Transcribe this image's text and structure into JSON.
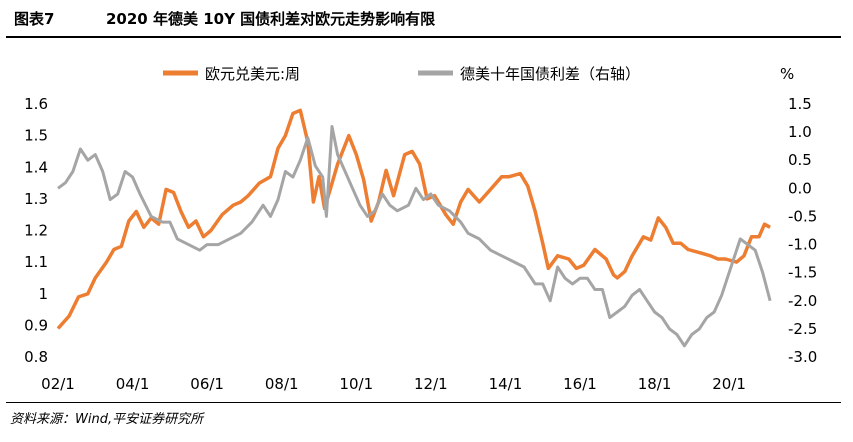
{
  "header": {
    "figure_no": "图表7",
    "title": "2020 年德美 10Y 国债利差对欧元走势影响有限"
  },
  "source": "资料来源：Wind,平安证券研究所",
  "chart_data": {
    "type": "line",
    "legend": {
      "placement": "top",
      "entries": [
        "欧元兑美元:周",
        "德美十年国债利差（右轴）"
      ]
    },
    "series": [
      {
        "name": "欧元兑美元:周",
        "axis": "left",
        "color": "#ED7D31",
        "points": [
          [
            2002.0,
            0.89
          ],
          [
            2002.3,
            0.93
          ],
          [
            2002.55,
            0.99
          ],
          [
            2002.8,
            1.0
          ],
          [
            2003.0,
            1.05
          ],
          [
            2003.3,
            1.1
          ],
          [
            2003.5,
            1.14
          ],
          [
            2003.7,
            1.15
          ],
          [
            2003.9,
            1.23
          ],
          [
            2004.1,
            1.26
          ],
          [
            2004.3,
            1.21
          ],
          [
            2004.5,
            1.24
          ],
          [
            2004.7,
            1.22
          ],
          [
            2004.9,
            1.33
          ],
          [
            2005.1,
            1.32
          ],
          [
            2005.3,
            1.26
          ],
          [
            2005.5,
            1.21
          ],
          [
            2005.7,
            1.23
          ],
          [
            2005.9,
            1.18
          ],
          [
            2006.1,
            1.2
          ],
          [
            2006.4,
            1.25
          ],
          [
            2006.7,
            1.28
          ],
          [
            2006.9,
            1.29
          ],
          [
            2007.1,
            1.31
          ],
          [
            2007.4,
            1.35
          ],
          [
            2007.7,
            1.37
          ],
          [
            2007.9,
            1.46
          ],
          [
            2008.1,
            1.5
          ],
          [
            2008.3,
            1.57
          ],
          [
            2008.5,
            1.58
          ],
          [
            2008.7,
            1.48
          ],
          [
            2008.85,
            1.29
          ],
          [
            2009.0,
            1.37
          ],
          [
            2009.15,
            1.27
          ],
          [
            2009.3,
            1.33
          ],
          [
            2009.5,
            1.41
          ],
          [
            2009.8,
            1.5
          ],
          [
            2010.0,
            1.44
          ],
          [
            2010.2,
            1.36
          ],
          [
            2010.4,
            1.23
          ],
          [
            2010.6,
            1.29
          ],
          [
            2010.8,
            1.39
          ],
          [
            2011.0,
            1.31
          ],
          [
            2011.3,
            1.44
          ],
          [
            2011.5,
            1.45
          ],
          [
            2011.7,
            1.41
          ],
          [
            2011.9,
            1.3
          ],
          [
            2012.1,
            1.31
          ],
          [
            2012.4,
            1.25
          ],
          [
            2012.6,
            1.22
          ],
          [
            2012.8,
            1.29
          ],
          [
            2013.0,
            1.33
          ],
          [
            2013.3,
            1.29
          ],
          [
            2013.6,
            1.33
          ],
          [
            2013.9,
            1.37
          ],
          [
            2014.1,
            1.37
          ],
          [
            2014.4,
            1.38
          ],
          [
            2014.6,
            1.34
          ],
          [
            2014.8,
            1.26
          ],
          [
            2015.0,
            1.16
          ],
          [
            2015.15,
            1.08
          ],
          [
            2015.4,
            1.12
          ],
          [
            2015.7,
            1.11
          ],
          [
            2015.9,
            1.08
          ],
          [
            2016.1,
            1.09
          ],
          [
            2016.4,
            1.14
          ],
          [
            2016.7,
            1.11
          ],
          [
            2016.9,
            1.06
          ],
          [
            2017.0,
            1.05
          ],
          [
            2017.2,
            1.07
          ],
          [
            2017.4,
            1.12
          ],
          [
            2017.7,
            1.18
          ],
          [
            2017.9,
            1.17
          ],
          [
            2018.1,
            1.24
          ],
          [
            2018.3,
            1.21
          ],
          [
            2018.5,
            1.16
          ],
          [
            2018.7,
            1.16
          ],
          [
            2018.9,
            1.14
          ],
          [
            2019.2,
            1.13
          ],
          [
            2019.5,
            1.12
          ],
          [
            2019.7,
            1.11
          ],
          [
            2019.9,
            1.11
          ],
          [
            2020.2,
            1.1
          ],
          [
            2020.4,
            1.12
          ],
          [
            2020.6,
            1.18
          ],
          [
            2020.8,
            1.18
          ],
          [
            2020.95,
            1.22
          ],
          [
            2021.1,
            1.21
          ]
        ]
      },
      {
        "name": "德美十年国债利差（右轴）",
        "axis": "right",
        "color": "#A5A5A5",
        "points": [
          [
            2002.0,
            0.0
          ],
          [
            2002.2,
            0.1
          ],
          [
            2002.4,
            0.3
          ],
          [
            2002.6,
            0.7
          ],
          [
            2002.8,
            0.5
          ],
          [
            2003.0,
            0.6
          ],
          [
            2003.2,
            0.3
          ],
          [
            2003.4,
            -0.2
          ],
          [
            2003.6,
            -0.1
          ],
          [
            2003.8,
            0.3
          ],
          [
            2004.0,
            0.2
          ],
          [
            2004.2,
            -0.1
          ],
          [
            2004.5,
            -0.5
          ],
          [
            2004.8,
            -0.6
          ],
          [
            2005.0,
            -0.6
          ],
          [
            2005.2,
            -0.9
          ],
          [
            2005.5,
            -1.0
          ],
          [
            2005.8,
            -1.1
          ],
          [
            2006.0,
            -1.0
          ],
          [
            2006.3,
            -1.0
          ],
          [
            2006.6,
            -0.9
          ],
          [
            2006.9,
            -0.8
          ],
          [
            2007.2,
            -0.6
          ],
          [
            2007.5,
            -0.3
          ],
          [
            2007.7,
            -0.5
          ],
          [
            2007.9,
            -0.2
          ],
          [
            2008.1,
            0.3
          ],
          [
            2008.3,
            0.2
          ],
          [
            2008.5,
            0.5
          ],
          [
            2008.7,
            0.9
          ],
          [
            2008.9,
            0.4
          ],
          [
            2009.1,
            0.2
          ],
          [
            2009.2,
            -0.5
          ],
          [
            2009.35,
            1.1
          ],
          [
            2009.5,
            0.6
          ],
          [
            2009.7,
            0.3
          ],
          [
            2009.9,
            0.0
          ],
          [
            2010.1,
            -0.3
          ],
          [
            2010.3,
            -0.5
          ],
          [
            2010.5,
            -0.4
          ],
          [
            2010.7,
            -0.1
          ],
          [
            2010.9,
            -0.3
          ],
          [
            2011.1,
            -0.4
          ],
          [
            2011.4,
            -0.3
          ],
          [
            2011.6,
            0.0
          ],
          [
            2011.8,
            -0.2
          ],
          [
            2012.0,
            -0.1
          ],
          [
            2012.2,
            -0.3
          ],
          [
            2012.5,
            -0.4
          ],
          [
            2012.8,
            -0.6
          ],
          [
            2013.0,
            -0.8
          ],
          [
            2013.3,
            -0.9
          ],
          [
            2013.6,
            -1.1
          ],
          [
            2013.9,
            -1.2
          ],
          [
            2014.2,
            -1.3
          ],
          [
            2014.5,
            -1.4
          ],
          [
            2014.8,
            -1.7
          ],
          [
            2015.0,
            -1.7
          ],
          [
            2015.2,
            -2.0
          ],
          [
            2015.4,
            -1.4
          ],
          [
            2015.6,
            -1.6
          ],
          [
            2015.8,
            -1.7
          ],
          [
            2016.0,
            -1.6
          ],
          [
            2016.2,
            -1.6
          ],
          [
            2016.4,
            -1.8
          ],
          [
            2016.6,
            -1.8
          ],
          [
            2016.8,
            -2.3
          ],
          [
            2017.0,
            -2.2
          ],
          [
            2017.2,
            -2.1
          ],
          [
            2017.4,
            -1.9
          ],
          [
            2017.6,
            -1.8
          ],
          [
            2017.8,
            -2.0
          ],
          [
            2018.0,
            -2.2
          ],
          [
            2018.2,
            -2.3
          ],
          [
            2018.4,
            -2.5
          ],
          [
            2018.6,
            -2.6
          ],
          [
            2018.8,
            -2.8
          ],
          [
            2019.0,
            -2.6
          ],
          [
            2019.2,
            -2.5
          ],
          [
            2019.4,
            -2.3
          ],
          [
            2019.6,
            -2.2
          ],
          [
            2019.8,
            -1.9
          ],
          [
            2020.0,
            -1.5
          ],
          [
            2020.15,
            -1.2
          ],
          [
            2020.3,
            -0.9
          ],
          [
            2020.5,
            -1.0
          ],
          [
            2020.7,
            -1.1
          ],
          [
            2020.9,
            -1.5
          ],
          [
            2021.1,
            -2.0
          ]
        ]
      }
    ],
    "x_axis": {
      "range": [
        2002.0,
        2021.15
      ],
      "ticks": [
        [
          2002,
          "02/1"
        ],
        [
          2004,
          "04/1"
        ],
        [
          2006,
          "06/1"
        ],
        [
          2008,
          "08/1"
        ],
        [
          2010,
          "10/1"
        ],
        [
          2012,
          "12/1"
        ],
        [
          2014,
          "14/1"
        ],
        [
          2016,
          "16/1"
        ],
        [
          2018,
          "18/1"
        ],
        [
          2020,
          "20/1"
        ]
      ]
    },
    "y_left": {
      "range": [
        0.8,
        1.6
      ],
      "ticks": [
        "1.6",
        "1.5",
        "1.4",
        "1.3",
        "1.2",
        "1.1",
        "1",
        "0.9",
        "0.8"
      ]
    },
    "y_right": {
      "label": "%",
      "range": [
        -3.0,
        1.5
      ],
      "ticks": [
        "1.5",
        "1.0",
        "0.5",
        "0.0",
        "-0.5",
        "-1.0",
        "-1.5",
        "-2.0",
        "-2.5",
        "-3.0"
      ]
    },
    "grid": false
  }
}
